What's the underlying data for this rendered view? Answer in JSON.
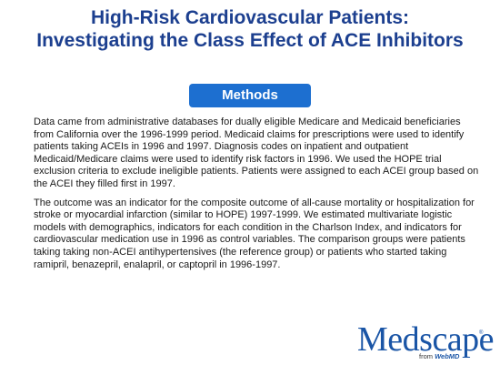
{
  "slide": {
    "title_line1": "High-Risk Cardiovascular Patients:",
    "title_line2": "Investigating the Class Effect of ACE Inhibitors",
    "section_label": "Methods",
    "paragraphs": [
      "Data came from administrative databases for dually eligible Medicare and Medicaid beneficiaries from California over the 1996-1999 period. Medicaid claims for prescriptions were used to identify patients taking ACEIs in 1996 and 1997. Diagnosis codes on inpatient and outpatient Medicaid/Medicare claims were used to identify risk factors in 1996. We used the HOPE trial exclusion criteria to exclude ineligible patients. Patients were assigned to each ACEI group based on the ACEI they filled first in 1997.",
      "The outcome was an indicator for the composite outcome of all-cause mortality or hospitalization for stroke or myocardial infarction (similar to HOPE) 1997-1999. We estimated multivariate logistic models with demographics, indicators for each condition in the Charlson Index, and indicators for cardiovascular medication use in 1996 as control variables. The comparison groups were patients taking taking non-ACEI antihypertensives (the reference group) or patients who started taking ramipril, benazepril, enalapril, or captopril in 1996-1997."
    ]
  },
  "logo": {
    "word_part1": "Med",
    "word_part2": "scape",
    "trademark": "®",
    "sub_prefix": "from ",
    "sub_brand": "WebMD"
  },
  "colors": {
    "title": "#1c3f8f",
    "badge_bg": "#1d6fd0",
    "badge_text": "#ffffff",
    "body_text": "#1a1a1a",
    "logo": "#1a55a6"
  }
}
